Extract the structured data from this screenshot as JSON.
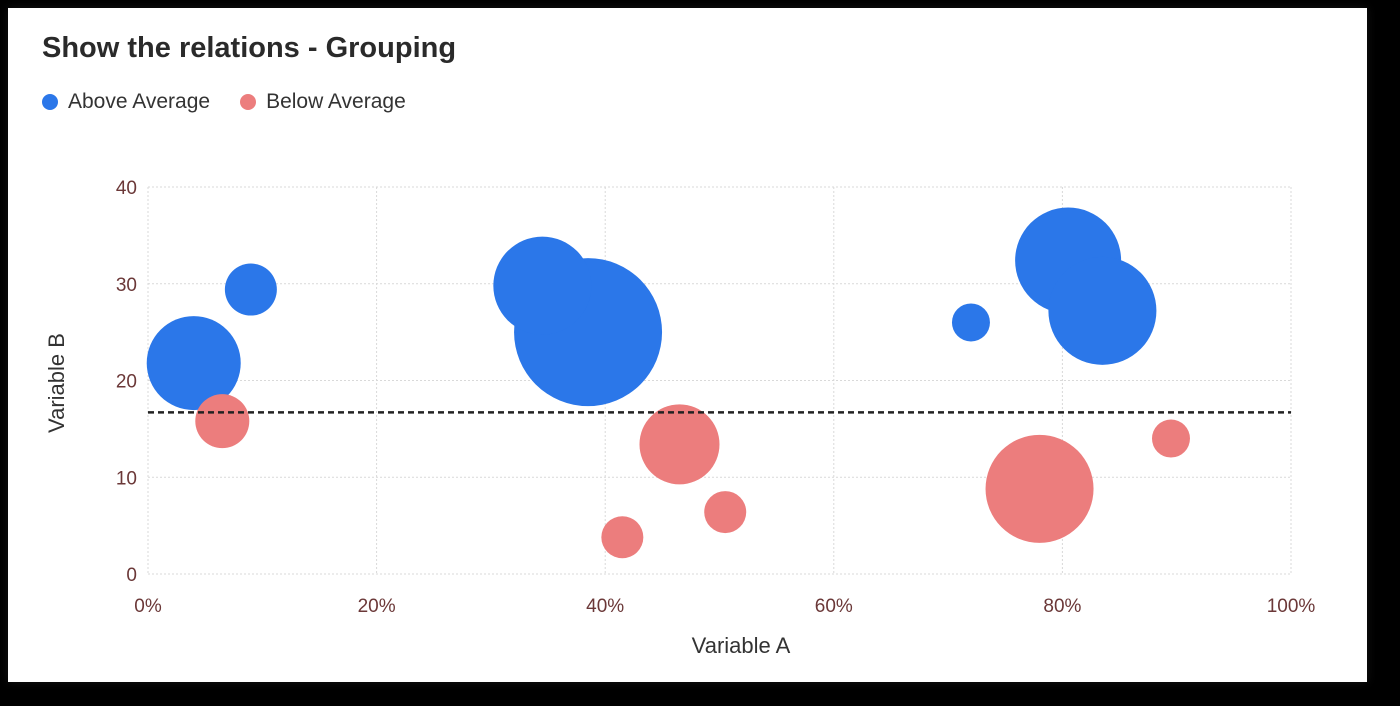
{
  "chart_data": {
    "type": "scatter",
    "subtype": "bubble",
    "title": "Show the relations - Grouping",
    "xlabel": "Variable A",
    "ylabel": "Variable B",
    "xlim": [
      0,
      100
    ],
    "ylim": [
      0,
      40
    ],
    "x_ticks": [
      "0%",
      "20%",
      "40%",
      "60%",
      "80%",
      "100%"
    ],
    "x_tick_values": [
      0,
      20,
      40,
      60,
      80,
      100
    ],
    "y_ticks": [
      "0",
      "10",
      "20",
      "30",
      "40"
    ],
    "y_tick_values": [
      0,
      10,
      20,
      30,
      40
    ],
    "grid": true,
    "legend_position": "top-left",
    "average_line": {
      "y": 16.7,
      "style": "dashed",
      "color": "#222222"
    },
    "series": [
      {
        "name": "Above Average",
        "color": "#2b77e9",
        "points": [
          {
            "x": 4,
            "y": 21.8,
            "size": 47
          },
          {
            "x": 9,
            "y": 29.4,
            "size": 26
          },
          {
            "x": 38.5,
            "y": 25,
            "size": 74
          },
          {
            "x": 34.5,
            "y": 29.8,
            "size": 49
          },
          {
            "x": 72,
            "y": 26,
            "size": 19
          },
          {
            "x": 80.5,
            "y": 32.4,
            "size": 53
          },
          {
            "x": 83.5,
            "y": 27.2,
            "size": 54
          }
        ]
      },
      {
        "name": "Below Average",
        "color": "#ec7d7d",
        "points": [
          {
            "x": 6.5,
            "y": 15.8,
            "size": 27
          },
          {
            "x": 46.5,
            "y": 13.4,
            "size": 40
          },
          {
            "x": 50.5,
            "y": 6.4,
            "size": 21
          },
          {
            "x": 41.5,
            "y": 3.8,
            "size": 21
          },
          {
            "x": 78,
            "y": 8.8,
            "size": 54
          },
          {
            "x": 89.5,
            "y": 14,
            "size": 19
          }
        ]
      }
    ]
  }
}
